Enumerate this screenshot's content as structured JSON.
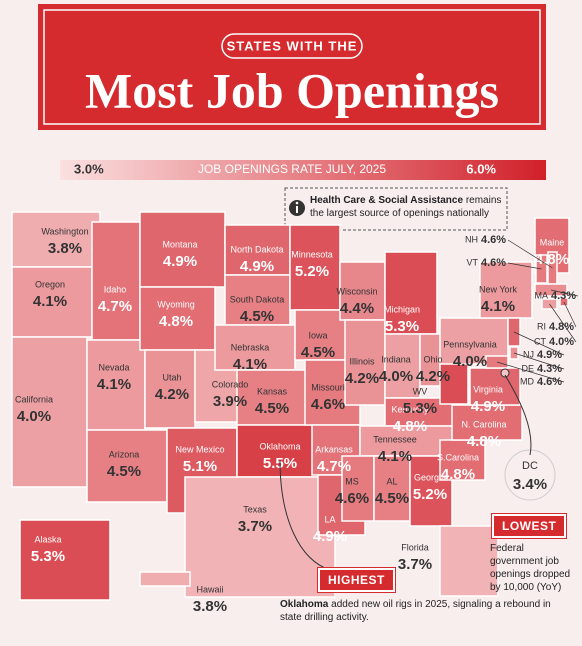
{
  "header": {
    "kicker": "STATES WITH THE",
    "title": "Most Job Openings"
  },
  "scale": {
    "title": "JOB OPENINGS RATE JULY, 2025",
    "min": {
      "value": 3.0,
      "label": "3.0%"
    },
    "max": {
      "value": 6.0,
      "label": "6.0%"
    },
    "color_min": "#fbe0e0",
    "color_max": "#d1202a"
  },
  "states": [
    {
      "name": "Washington",
      "value": 3.8,
      "label": "3.8%"
    },
    {
      "name": "Oregon",
      "value": 4.1,
      "label": "4.1%"
    },
    {
      "name": "California",
      "value": 4.0,
      "label": "4.0%"
    },
    {
      "name": "Idaho",
      "value": 4.7,
      "label": "4.7%"
    },
    {
      "name": "Nevada",
      "value": 4.1,
      "label": "4.1%"
    },
    {
      "name": "Arizona",
      "value": 4.5,
      "label": "4.5%"
    },
    {
      "name": "Montana",
      "value": 4.9,
      "label": "4.9%"
    },
    {
      "name": "Wyoming",
      "value": 4.8,
      "label": "4.8%"
    },
    {
      "name": "Utah",
      "value": 4.2,
      "label": "4.2%"
    },
    {
      "name": "Colorado",
      "value": 3.9,
      "label": "3.9%"
    },
    {
      "name": "New Mexico",
      "value": 5.1,
      "label": "5.1%"
    },
    {
      "name": "North Dakota",
      "value": 4.9,
      "label": "4.9%"
    },
    {
      "name": "South Dakota",
      "value": 4.5,
      "label": "4.5%"
    },
    {
      "name": "Nebraska",
      "value": 4.1,
      "label": "4.1%"
    },
    {
      "name": "Kansas",
      "value": 4.5,
      "label": "4.5%"
    },
    {
      "name": "Oklahoma",
      "value": 5.5,
      "label": "5.5%"
    },
    {
      "name": "Texas",
      "value": 3.7,
      "label": "3.7%"
    },
    {
      "name": "Minnesota",
      "value": 5.2,
      "label": "5.2%"
    },
    {
      "name": "Iowa",
      "value": 4.5,
      "label": "4.5%"
    },
    {
      "name": "Missouri",
      "value": 4.6,
      "label": "4.6%"
    },
    {
      "name": "Arkansas",
      "value": 4.7,
      "label": "4.7%"
    },
    {
      "name": "LA",
      "value": 4.9,
      "label": "4.9%"
    },
    {
      "name": "Wisconsin",
      "value": 4.4,
      "label": "4.4%"
    },
    {
      "name": "Illinois",
      "value": 4.2,
      "label": "4.2%"
    },
    {
      "name": "Michigan",
      "value": 5.3,
      "label": "5.3%"
    },
    {
      "name": "Indiana",
      "value": 4.0,
      "label": "4.0%"
    },
    {
      "name": "Ohio",
      "value": 4.2,
      "label": "4.2%"
    },
    {
      "name": "Kentucky",
      "value": 4.8,
      "label": "4.8%"
    },
    {
      "name": "Tennessee",
      "value": 4.1,
      "label": "4.1%"
    },
    {
      "name": "MS",
      "value": 4.6,
      "label": "4.6%"
    },
    {
      "name": "AL",
      "value": 4.5,
      "label": "4.5%"
    },
    {
      "name": "Georgia",
      "value": 5.2,
      "label": "5.2%"
    },
    {
      "name": "S.Carolina",
      "value": 4.8,
      "label": "4.8%"
    },
    {
      "name": "N. Carolina",
      "value": 4.8,
      "label": "4.8%"
    },
    {
      "name": "Virginia",
      "value": 4.9,
      "label": "4.9%"
    },
    {
      "name": "WV",
      "value": 5.3,
      "label": "5.3%"
    },
    {
      "name": "Pennsylvania",
      "value": 4.0,
      "label": "4.0%"
    },
    {
      "name": "New York",
      "value": 4.1,
      "label": "4.1%"
    },
    {
      "name": "Maine",
      "value": 4.8,
      "label": "4.8%"
    },
    {
      "name": "Florida",
      "value": 3.7,
      "label": "3.7%"
    },
    {
      "name": "Alaska",
      "value": 5.3,
      "label": "5.3%"
    },
    {
      "name": "Hawaii",
      "value": 3.8,
      "label": "3.8%"
    },
    {
      "name": "NH",
      "value": 4.6,
      "label": "4.6%"
    },
    {
      "name": "VT",
      "value": 4.6,
      "label": "4.6%"
    },
    {
      "name": "MA",
      "value": 4.3,
      "label": "4.3%"
    },
    {
      "name": "RI",
      "value": 4.8,
      "label": "4.8%"
    },
    {
      "name": "CT",
      "value": 4.0,
      "label": "4.0%"
    },
    {
      "name": "NJ",
      "value": 4.9,
      "label": "4.9%"
    },
    {
      "name": "DE",
      "value": 4.3,
      "label": "4.3%"
    },
    {
      "name": "MD",
      "value": 4.6,
      "label": "4.6%"
    }
  ],
  "dc": {
    "name": "DC",
    "value": 3.4,
    "label": "3.4%"
  },
  "note": {
    "bold": "Health Care & Social Assistance",
    "text": "remains the largest source of openings nationally"
  },
  "highest": {
    "tag": "HIGHEST",
    "bold": "Oklahoma",
    "text": "added new oil rigs in 2025, signaling a rebound in state drilling activity."
  },
  "lowest": {
    "tag": "LOWEST",
    "text": "Federal government job openings dropped by 10,000 (YoY)"
  }
}
